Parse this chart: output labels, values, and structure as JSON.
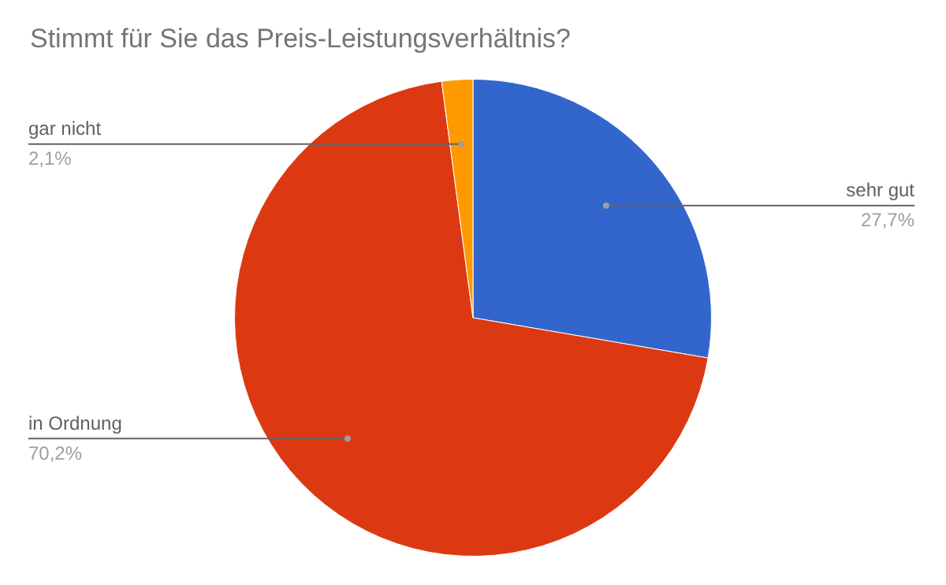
{
  "chart_data": {
    "type": "pie",
    "title": "Stimmt für Sie das Preis-Leistungsverhältnis?",
    "categories": [
      "sehr gut",
      "in Ordnung",
      "gar nicht"
    ],
    "values": [
      27.7,
      70.2,
      2.1
    ],
    "value_labels": [
      "27,7%",
      "70,2%",
      "2,1%"
    ],
    "colors": [
      "#3366cc",
      "#dc3912",
      "#ff9900"
    ],
    "legend": false
  }
}
